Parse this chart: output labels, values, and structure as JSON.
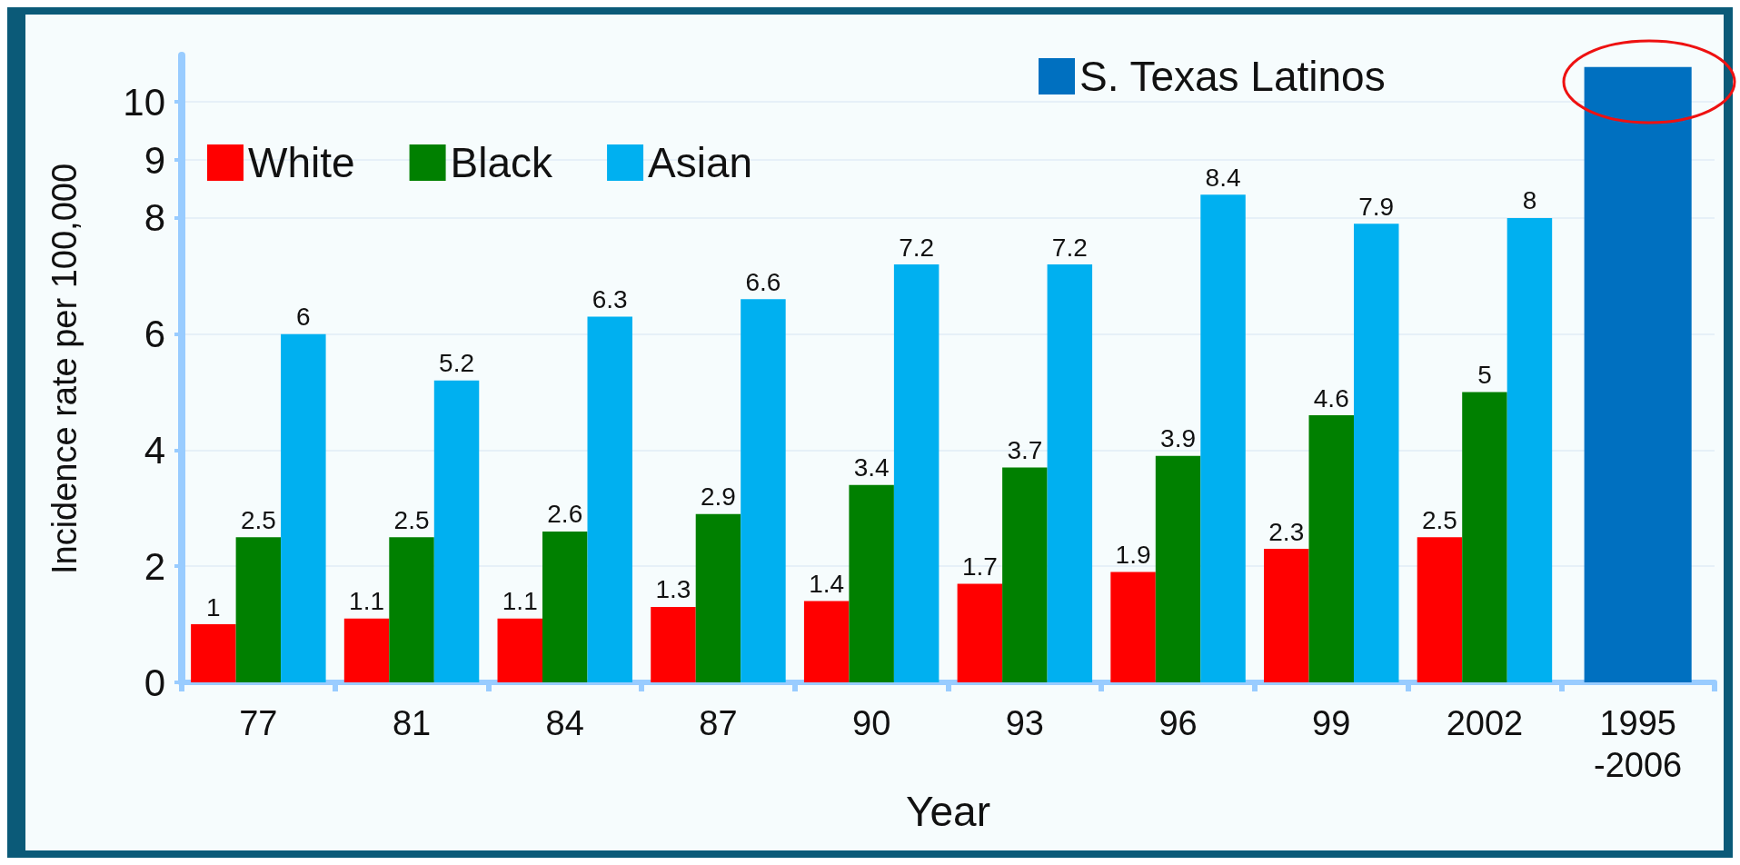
{
  "chart_data": {
    "type": "bar",
    "xlabel": "Year",
    "ylabel": "Incidence rate per 100,000",
    "categories": [
      "77",
      "81",
      "84",
      "87",
      "90",
      "93",
      "96",
      "99",
      "2002",
      "1995\n-2006"
    ],
    "series": [
      {
        "name": "White",
        "color": "#ff0000",
        "values": [
          1,
          1.1,
          1.1,
          1.3,
          1.4,
          1.7,
          1.9,
          2.3,
          2.5,
          null
        ],
        "value_labels": [
          "1",
          "1.1",
          "1.1",
          "1.3",
          "1.4",
          "1.7",
          "1.9",
          "2.3",
          "2.5",
          null
        ]
      },
      {
        "name": "Black",
        "color": "#008000",
        "values": [
          2.5,
          2.5,
          2.6,
          2.9,
          3.4,
          3.7,
          3.9,
          4.6,
          5,
          null
        ],
        "value_labels": [
          "2.5",
          "2.5",
          "2.6",
          "2.9",
          "3.4",
          "3.7",
          "3.9",
          "4.6",
          "5",
          null
        ]
      },
      {
        "name": "Asian",
        "color": "#00b0f0",
        "values": [
          6,
          5.2,
          6.3,
          6.6,
          7.2,
          7.2,
          8.4,
          7.9,
          8,
          null
        ],
        "value_labels": [
          "6",
          "5.2",
          "6.3",
          "6.6",
          "7.2",
          "7.2",
          "8.4",
          "7.9",
          "8",
          null
        ]
      },
      {
        "name": "S. Texas Latinos",
        "color": "#0070c0",
        "values": [
          null,
          null,
          null,
          null,
          null,
          null,
          null,
          null,
          null,
          10.6
        ]
      }
    ],
    "ylim": [
      0,
      10.8
    ],
    "yticks": [
      0,
      2,
      4,
      6,
      8,
      9,
      10
    ],
    "grid": "y",
    "legend": "top"
  }
}
